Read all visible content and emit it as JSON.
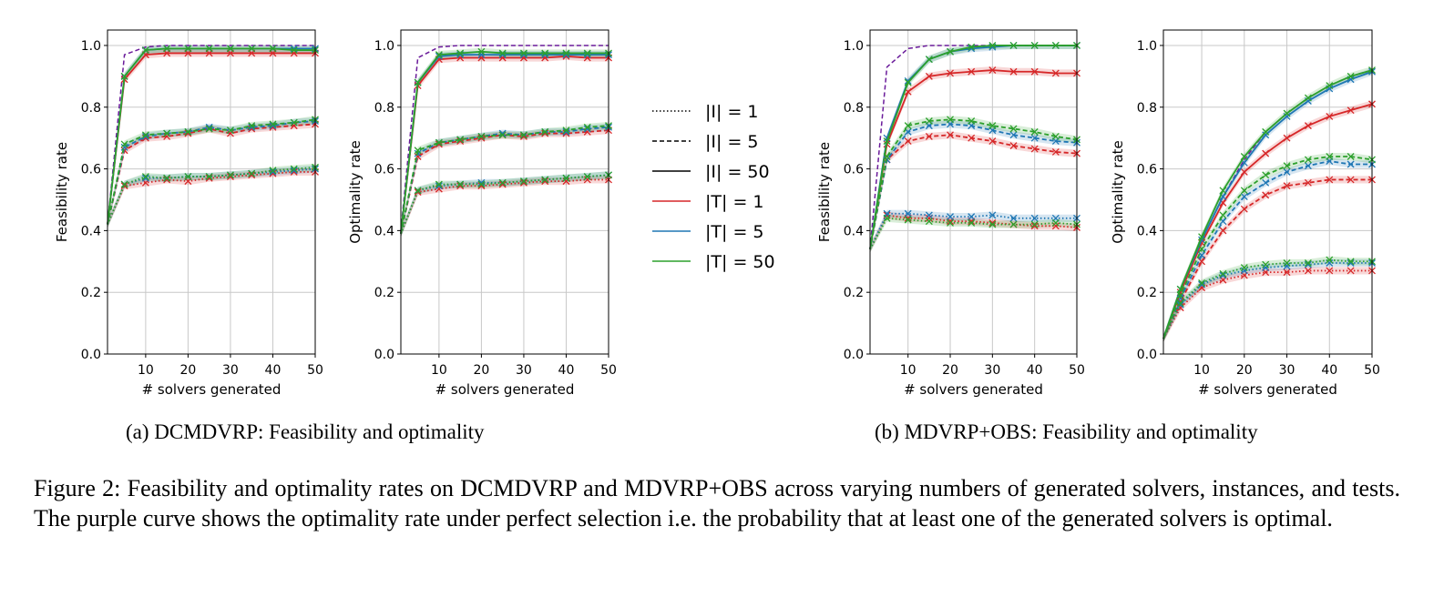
{
  "chart_data": [
    {
      "id": "a1",
      "type": "line",
      "xlabel": "# solvers generated",
      "ylabel": "Feasibility rate",
      "xlim": [
        1,
        50
      ],
      "ylim": [
        0,
        1.05
      ],
      "xticks": [
        10,
        20,
        30,
        40,
        50
      ],
      "yticks": [
        0.0,
        0.2,
        0.4,
        0.6,
        0.8,
        1.0
      ],
      "grid": true,
      "x": [
        1,
        5,
        10,
        15,
        20,
        25,
        30,
        35,
        40,
        45,
        50
      ],
      "perfect_selection": [
        {
          "name": "|I|=5",
          "style": "dashed",
          "color": "#6a1b9a",
          "values": [
            0.42,
            0.97,
            0.995,
            1.0,
            1.0,
            1.0,
            1.0,
            1.0,
            1.0,
            1.0,
            1.0
          ]
        }
      ],
      "series": [
        {
          "name": "|T|=1, |I|=50",
          "style": "solid",
          "color": "#d62728",
          "values": [
            0.42,
            0.89,
            0.97,
            0.975,
            0.975,
            0.975,
            0.975,
            0.975,
            0.975,
            0.975,
            0.975
          ]
        },
        {
          "name": "|T|=5, |I|=50",
          "style": "solid",
          "color": "#1f77b4",
          "values": [
            0.42,
            0.9,
            0.985,
            0.99,
            0.99,
            0.99,
            0.99,
            0.99,
            0.99,
            0.99,
            0.99
          ]
        },
        {
          "name": "|T|=50, |I|=50",
          "style": "solid",
          "color": "#2ca02c",
          "values": [
            0.42,
            0.9,
            0.985,
            0.99,
            0.99,
            0.99,
            0.99,
            0.99,
            0.99,
            0.985,
            0.985
          ]
        },
        {
          "name": "|T|=1, |I|=5",
          "style": "dashed",
          "color": "#d62728",
          "values": [
            0.42,
            0.66,
            0.7,
            0.705,
            0.715,
            0.73,
            0.715,
            0.73,
            0.735,
            0.74,
            0.745
          ]
        },
        {
          "name": "|T|=5, |I|=5",
          "style": "dashed",
          "color": "#1f77b4",
          "values": [
            0.42,
            0.67,
            0.705,
            0.715,
            0.72,
            0.735,
            0.725,
            0.735,
            0.74,
            0.75,
            0.755
          ]
        },
        {
          "name": "|T|=50, |I|=5",
          "style": "dashed",
          "color": "#2ca02c",
          "values": [
            0.42,
            0.68,
            0.71,
            0.715,
            0.72,
            0.73,
            0.725,
            0.74,
            0.745,
            0.75,
            0.76
          ]
        },
        {
          "name": "|T|=1, |I|=1",
          "style": "dotted",
          "color": "#d62728",
          "values": [
            0.42,
            0.545,
            0.555,
            0.565,
            0.56,
            0.57,
            0.575,
            0.58,
            0.585,
            0.59,
            0.59
          ]
        },
        {
          "name": "|T|=5, |I|=1",
          "style": "dotted",
          "color": "#1f77b4",
          "values": [
            0.42,
            0.55,
            0.57,
            0.57,
            0.575,
            0.575,
            0.58,
            0.585,
            0.59,
            0.595,
            0.6
          ]
        },
        {
          "name": "|T|=50, |I|=1",
          "style": "dotted",
          "color": "#2ca02c",
          "values": [
            0.42,
            0.55,
            0.575,
            0.57,
            0.575,
            0.575,
            0.58,
            0.585,
            0.595,
            0.6,
            0.605
          ]
        }
      ]
    },
    {
      "id": "a2",
      "type": "line",
      "xlabel": "# solvers generated",
      "ylabel": "Optimality rate",
      "xlim": [
        1,
        50
      ],
      "ylim": [
        0,
        1.05
      ],
      "xticks": [
        10,
        20,
        30,
        40,
        50
      ],
      "yticks": [
        0.0,
        0.2,
        0.4,
        0.6,
        0.8,
        1.0
      ],
      "grid": true,
      "x": [
        1,
        5,
        10,
        15,
        20,
        25,
        30,
        35,
        40,
        45,
        50
      ],
      "perfect_selection": [
        {
          "name": "|I|=5",
          "style": "dashed",
          "color": "#6a1b9a",
          "values": [
            0.4,
            0.96,
            0.995,
            1.0,
            1.0,
            1.0,
            1.0,
            1.0,
            1.0,
            1.0,
            1.0
          ]
        }
      ],
      "series": [
        {
          "name": "|T|=1, |I|=50",
          "style": "solid",
          "color": "#d62728",
          "values": [
            0.39,
            0.87,
            0.955,
            0.96,
            0.96,
            0.96,
            0.96,
            0.96,
            0.965,
            0.96,
            0.96
          ]
        },
        {
          "name": "|T|=5, |I|=50",
          "style": "solid",
          "color": "#1f77b4",
          "values": [
            0.39,
            0.88,
            0.965,
            0.97,
            0.97,
            0.97,
            0.97,
            0.97,
            0.97,
            0.97,
            0.97
          ]
        },
        {
          "name": "|T|=50, |I|=50",
          "style": "solid",
          "color": "#2ca02c",
          "values": [
            0.39,
            0.88,
            0.97,
            0.975,
            0.98,
            0.975,
            0.975,
            0.975,
            0.975,
            0.975,
            0.975
          ]
        },
        {
          "name": "|T|=1, |I|=5",
          "style": "dashed",
          "color": "#d62728",
          "values": [
            0.39,
            0.64,
            0.68,
            0.69,
            0.7,
            0.71,
            0.705,
            0.715,
            0.715,
            0.72,
            0.725
          ]
        },
        {
          "name": "|T|=5, |I|=5",
          "style": "dashed",
          "color": "#1f77b4",
          "values": [
            0.39,
            0.65,
            0.685,
            0.695,
            0.705,
            0.715,
            0.71,
            0.72,
            0.72,
            0.73,
            0.735
          ]
        },
        {
          "name": "|T|=50, |I|=5",
          "style": "dashed",
          "color": "#2ca02c",
          "values": [
            0.39,
            0.66,
            0.685,
            0.695,
            0.705,
            0.71,
            0.71,
            0.72,
            0.725,
            0.735,
            0.74
          ]
        },
        {
          "name": "|T|=1, |I|=1",
          "style": "dotted",
          "color": "#d62728",
          "values": [
            0.39,
            0.525,
            0.535,
            0.545,
            0.545,
            0.55,
            0.555,
            0.56,
            0.56,
            0.565,
            0.565
          ]
        },
        {
          "name": "|T|=5, |I|=1",
          "style": "dotted",
          "color": "#1f77b4",
          "values": [
            0.39,
            0.53,
            0.545,
            0.55,
            0.555,
            0.555,
            0.56,
            0.565,
            0.57,
            0.575,
            0.58
          ]
        },
        {
          "name": "|T|=50, |I|=1",
          "style": "dotted",
          "color": "#2ca02c",
          "values": [
            0.39,
            0.53,
            0.55,
            0.55,
            0.55,
            0.555,
            0.56,
            0.565,
            0.57,
            0.575,
            0.58
          ]
        }
      ]
    },
    {
      "id": "b1",
      "type": "line",
      "xlabel": "# solvers generated",
      "ylabel": "Feasibility rate",
      "xlim": [
        1,
        50
      ],
      "ylim": [
        0,
        1.05
      ],
      "xticks": [
        10,
        20,
        30,
        40,
        50
      ],
      "yticks": [
        0.0,
        0.2,
        0.4,
        0.6,
        0.8,
        1.0
      ],
      "grid": true,
      "x": [
        1,
        5,
        10,
        15,
        20,
        25,
        30,
        35,
        40,
        45,
        50
      ],
      "perfect_selection": [
        {
          "name": "|I|=5",
          "style": "dashed",
          "color": "#6a1b9a",
          "values": [
            0.34,
            0.93,
            0.99,
            1.0,
            1.0,
            1.0,
            1.0,
            1.0,
            1.0,
            1.0,
            1.0
          ]
        }
      ],
      "series": [
        {
          "name": "|T|=1, |I|=50",
          "style": "solid",
          "color": "#d62728",
          "values": [
            0.34,
            0.68,
            0.85,
            0.9,
            0.91,
            0.915,
            0.92,
            0.915,
            0.915,
            0.91,
            0.91
          ]
        },
        {
          "name": "|T|=5, |I|=50",
          "style": "solid",
          "color": "#1f77b4",
          "values": [
            0.34,
            0.7,
            0.885,
            0.955,
            0.98,
            0.99,
            0.995,
            1.0,
            1.0,
            1.0,
            1.0
          ]
        },
        {
          "name": "|T|=50, |I|=50",
          "style": "solid",
          "color": "#2ca02c",
          "values": [
            0.34,
            0.69,
            0.88,
            0.955,
            0.98,
            0.995,
            1.0,
            1.0,
            1.0,
            1.0,
            1.0
          ]
        },
        {
          "name": "|T|=1, |I|=5",
          "style": "dashed",
          "color": "#d62728",
          "values": [
            0.34,
            0.63,
            0.69,
            0.705,
            0.71,
            0.7,
            0.69,
            0.675,
            0.665,
            0.655,
            0.65
          ]
        },
        {
          "name": "|T|=5, |I|=5",
          "style": "dashed",
          "color": "#1f77b4",
          "values": [
            0.34,
            0.63,
            0.72,
            0.74,
            0.745,
            0.74,
            0.725,
            0.71,
            0.7,
            0.69,
            0.685
          ]
        },
        {
          "name": "|T|=50, |I|=5",
          "style": "dashed",
          "color": "#2ca02c",
          "values": [
            0.34,
            0.64,
            0.74,
            0.755,
            0.76,
            0.755,
            0.74,
            0.73,
            0.72,
            0.705,
            0.695
          ]
        },
        {
          "name": "|T|=1, |I|=1",
          "style": "dotted",
          "color": "#d62728",
          "values": [
            0.34,
            0.45,
            0.44,
            0.44,
            0.43,
            0.43,
            0.425,
            0.42,
            0.415,
            0.415,
            0.41
          ]
        },
        {
          "name": "|T|=5, |I|=1",
          "style": "dotted",
          "color": "#1f77b4",
          "values": [
            0.34,
            0.455,
            0.455,
            0.45,
            0.445,
            0.445,
            0.45,
            0.44,
            0.44,
            0.44,
            0.44
          ]
        },
        {
          "name": "|T|=50, |I|=1",
          "style": "dotted",
          "color": "#2ca02c",
          "values": [
            0.34,
            0.44,
            0.435,
            0.43,
            0.425,
            0.425,
            0.42,
            0.42,
            0.42,
            0.425,
            0.42
          ]
        }
      ]
    },
    {
      "id": "b2",
      "type": "line",
      "xlabel": "# solvers generated",
      "ylabel": "Optimality rate",
      "xlim": [
        1,
        50
      ],
      "ylim": [
        0,
        1.05
      ],
      "xticks": [
        10,
        20,
        30,
        40,
        50
      ],
      "yticks": [
        0.0,
        0.2,
        0.4,
        0.6,
        0.8,
        1.0
      ],
      "grid": true,
      "x": [
        1,
        5,
        10,
        15,
        20,
        25,
        30,
        35,
        40,
        45,
        50
      ],
      "perfect_selection": [
        {
          "name": "|I|=5",
          "style": "dashed",
          "color": "#6a1b9a",
          "values": [
            0.05,
            0.21,
            0.37,
            0.51,
            0.63,
            0.72,
            0.78,
            0.83,
            0.87,
            0.9,
            0.92
          ]
        }
      ],
      "series": [
        {
          "name": "|T|=1, |I|=50",
          "style": "solid",
          "color": "#d62728",
          "values": [
            0.05,
            0.2,
            0.36,
            0.49,
            0.59,
            0.65,
            0.7,
            0.74,
            0.77,
            0.79,
            0.81
          ]
        },
        {
          "name": "|T|=5, |I|=50",
          "style": "solid",
          "color": "#1f77b4",
          "values": [
            0.05,
            0.21,
            0.37,
            0.51,
            0.62,
            0.71,
            0.77,
            0.82,
            0.86,
            0.89,
            0.915
          ]
        },
        {
          "name": "|T|=50, |I|=50",
          "style": "solid",
          "color": "#2ca02c",
          "values": [
            0.05,
            0.21,
            0.38,
            0.53,
            0.64,
            0.72,
            0.78,
            0.83,
            0.87,
            0.9,
            0.92
          ]
        },
        {
          "name": "|T|=1, |I|=5",
          "style": "dashed",
          "color": "#d62728",
          "values": [
            0.05,
            0.17,
            0.3,
            0.4,
            0.47,
            0.515,
            0.545,
            0.555,
            0.565,
            0.565,
            0.565
          ]
        },
        {
          "name": "|T|=5, |I|=5",
          "style": "dashed",
          "color": "#1f77b4",
          "values": [
            0.05,
            0.18,
            0.32,
            0.43,
            0.51,
            0.555,
            0.59,
            0.61,
            0.625,
            0.615,
            0.615
          ]
        },
        {
          "name": "|T|=50, |I|=5",
          "style": "dashed",
          "color": "#2ca02c",
          "values": [
            0.05,
            0.19,
            0.34,
            0.45,
            0.53,
            0.58,
            0.61,
            0.63,
            0.64,
            0.64,
            0.63
          ]
        },
        {
          "name": "|T|=1, |I|=1",
          "style": "dotted",
          "color": "#d62728",
          "values": [
            0.05,
            0.15,
            0.215,
            0.24,
            0.255,
            0.265,
            0.265,
            0.27,
            0.27,
            0.27,
            0.27
          ]
        },
        {
          "name": "|T|=5, |I|=1",
          "style": "dotted",
          "color": "#1f77b4",
          "values": [
            0.05,
            0.16,
            0.225,
            0.255,
            0.27,
            0.28,
            0.285,
            0.29,
            0.295,
            0.295,
            0.295
          ]
        },
        {
          "name": "|T|=50, |I|=1",
          "style": "dotted",
          "color": "#2ca02c",
          "values": [
            0.05,
            0.165,
            0.23,
            0.26,
            0.28,
            0.29,
            0.295,
            0.295,
            0.305,
            0.3,
            0.3
          ]
        }
      ]
    }
  ],
  "legend": [
    {
      "label": "|I| = 1",
      "style": "dotted",
      "color": "#000000"
    },
    {
      "label": "|I| = 5",
      "style": "dashed",
      "color": "#000000"
    },
    {
      "label": "|I| = 50",
      "style": "solid",
      "color": "#000000"
    },
    {
      "label": "|T| = 1",
      "style": "solid",
      "color": "#d62728"
    },
    {
      "label": "|T| = 5",
      "style": "solid",
      "color": "#1f77b4"
    },
    {
      "label": "|T| = 50",
      "style": "solid",
      "color": "#2ca02c"
    }
  ],
  "captions": {
    "sub_a": "(a) DCMDVRP: Feasibility and optimality",
    "sub_b": "(b) MDVRP+OBS: Feasibility and optimality",
    "figure": "Figure 2: Feasibility and optimality rates on DCMDVRP and MDVRP+OBS across varying numbers of generated solvers, instances, and tests. The purple curve shows the optimality rate under perfect selection i.e. the probability that at least one of the generated solvers is optimal."
  }
}
